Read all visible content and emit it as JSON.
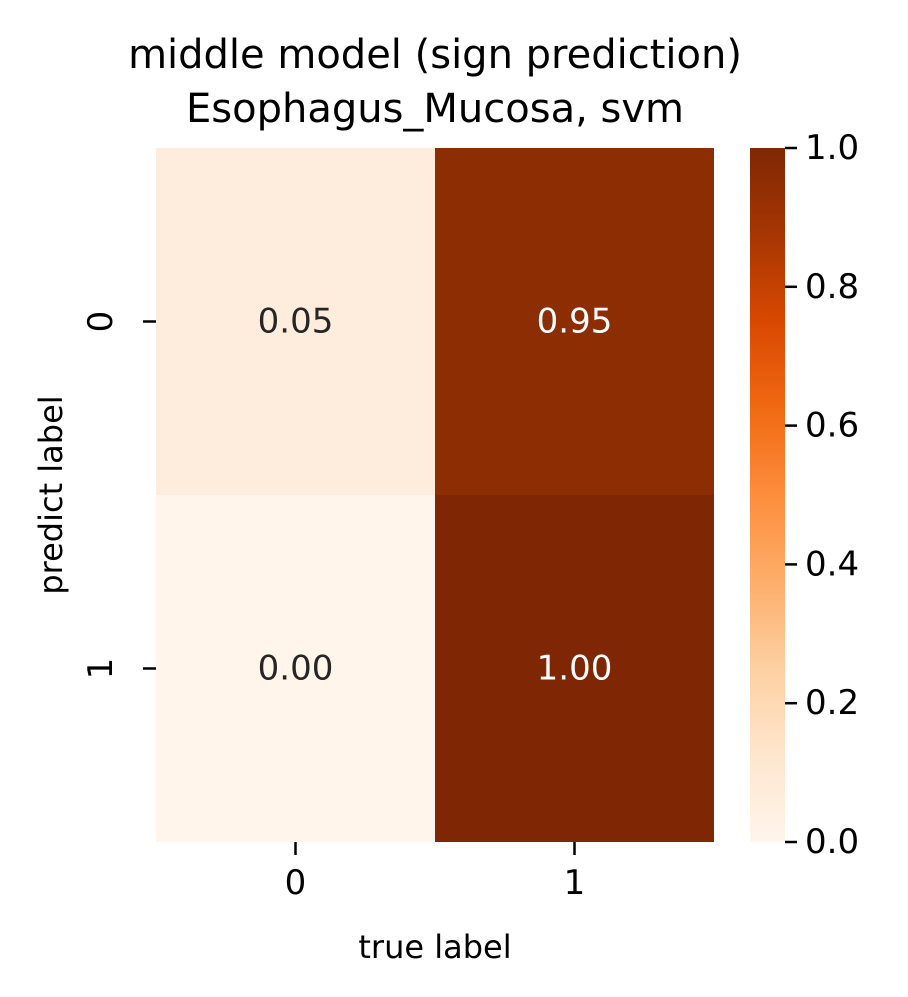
{
  "chart_data": {
    "type": "heatmap",
    "title": [
      "middle model (sign prediction)",
      "Esophagus_Mucosa, svm"
    ],
    "xlabel": "true label",
    "ylabel": "predict label",
    "x_categories": [
      "0",
      "1"
    ],
    "y_categories": [
      "0",
      "1"
    ],
    "values": [
      [
        0.05,
        0.95
      ],
      [
        0.0,
        1.0
      ]
    ],
    "cell_labels": [
      [
        "0.05",
        "0.95"
      ],
      [
        "0.00",
        "1.00"
      ]
    ],
    "colormap": "Oranges",
    "color_range": [
      0.0,
      1.0
    ],
    "colorbar": {
      "ticks": [
        0.0,
        0.2,
        0.4,
        0.6,
        0.8,
        1.0
      ],
      "tick_labels": [
        "0.0",
        "0.2",
        "0.4",
        "0.6",
        "0.8",
        "1.0"
      ]
    },
    "colors": {
      "cell_0_0": "#feeddc",
      "cell_0_1": "#8c2d04",
      "cell_1_0": "#fff5eb",
      "cell_1_1": "#7f2704",
      "text_dark": "#262626",
      "text_light": "#ffffff"
    }
  }
}
